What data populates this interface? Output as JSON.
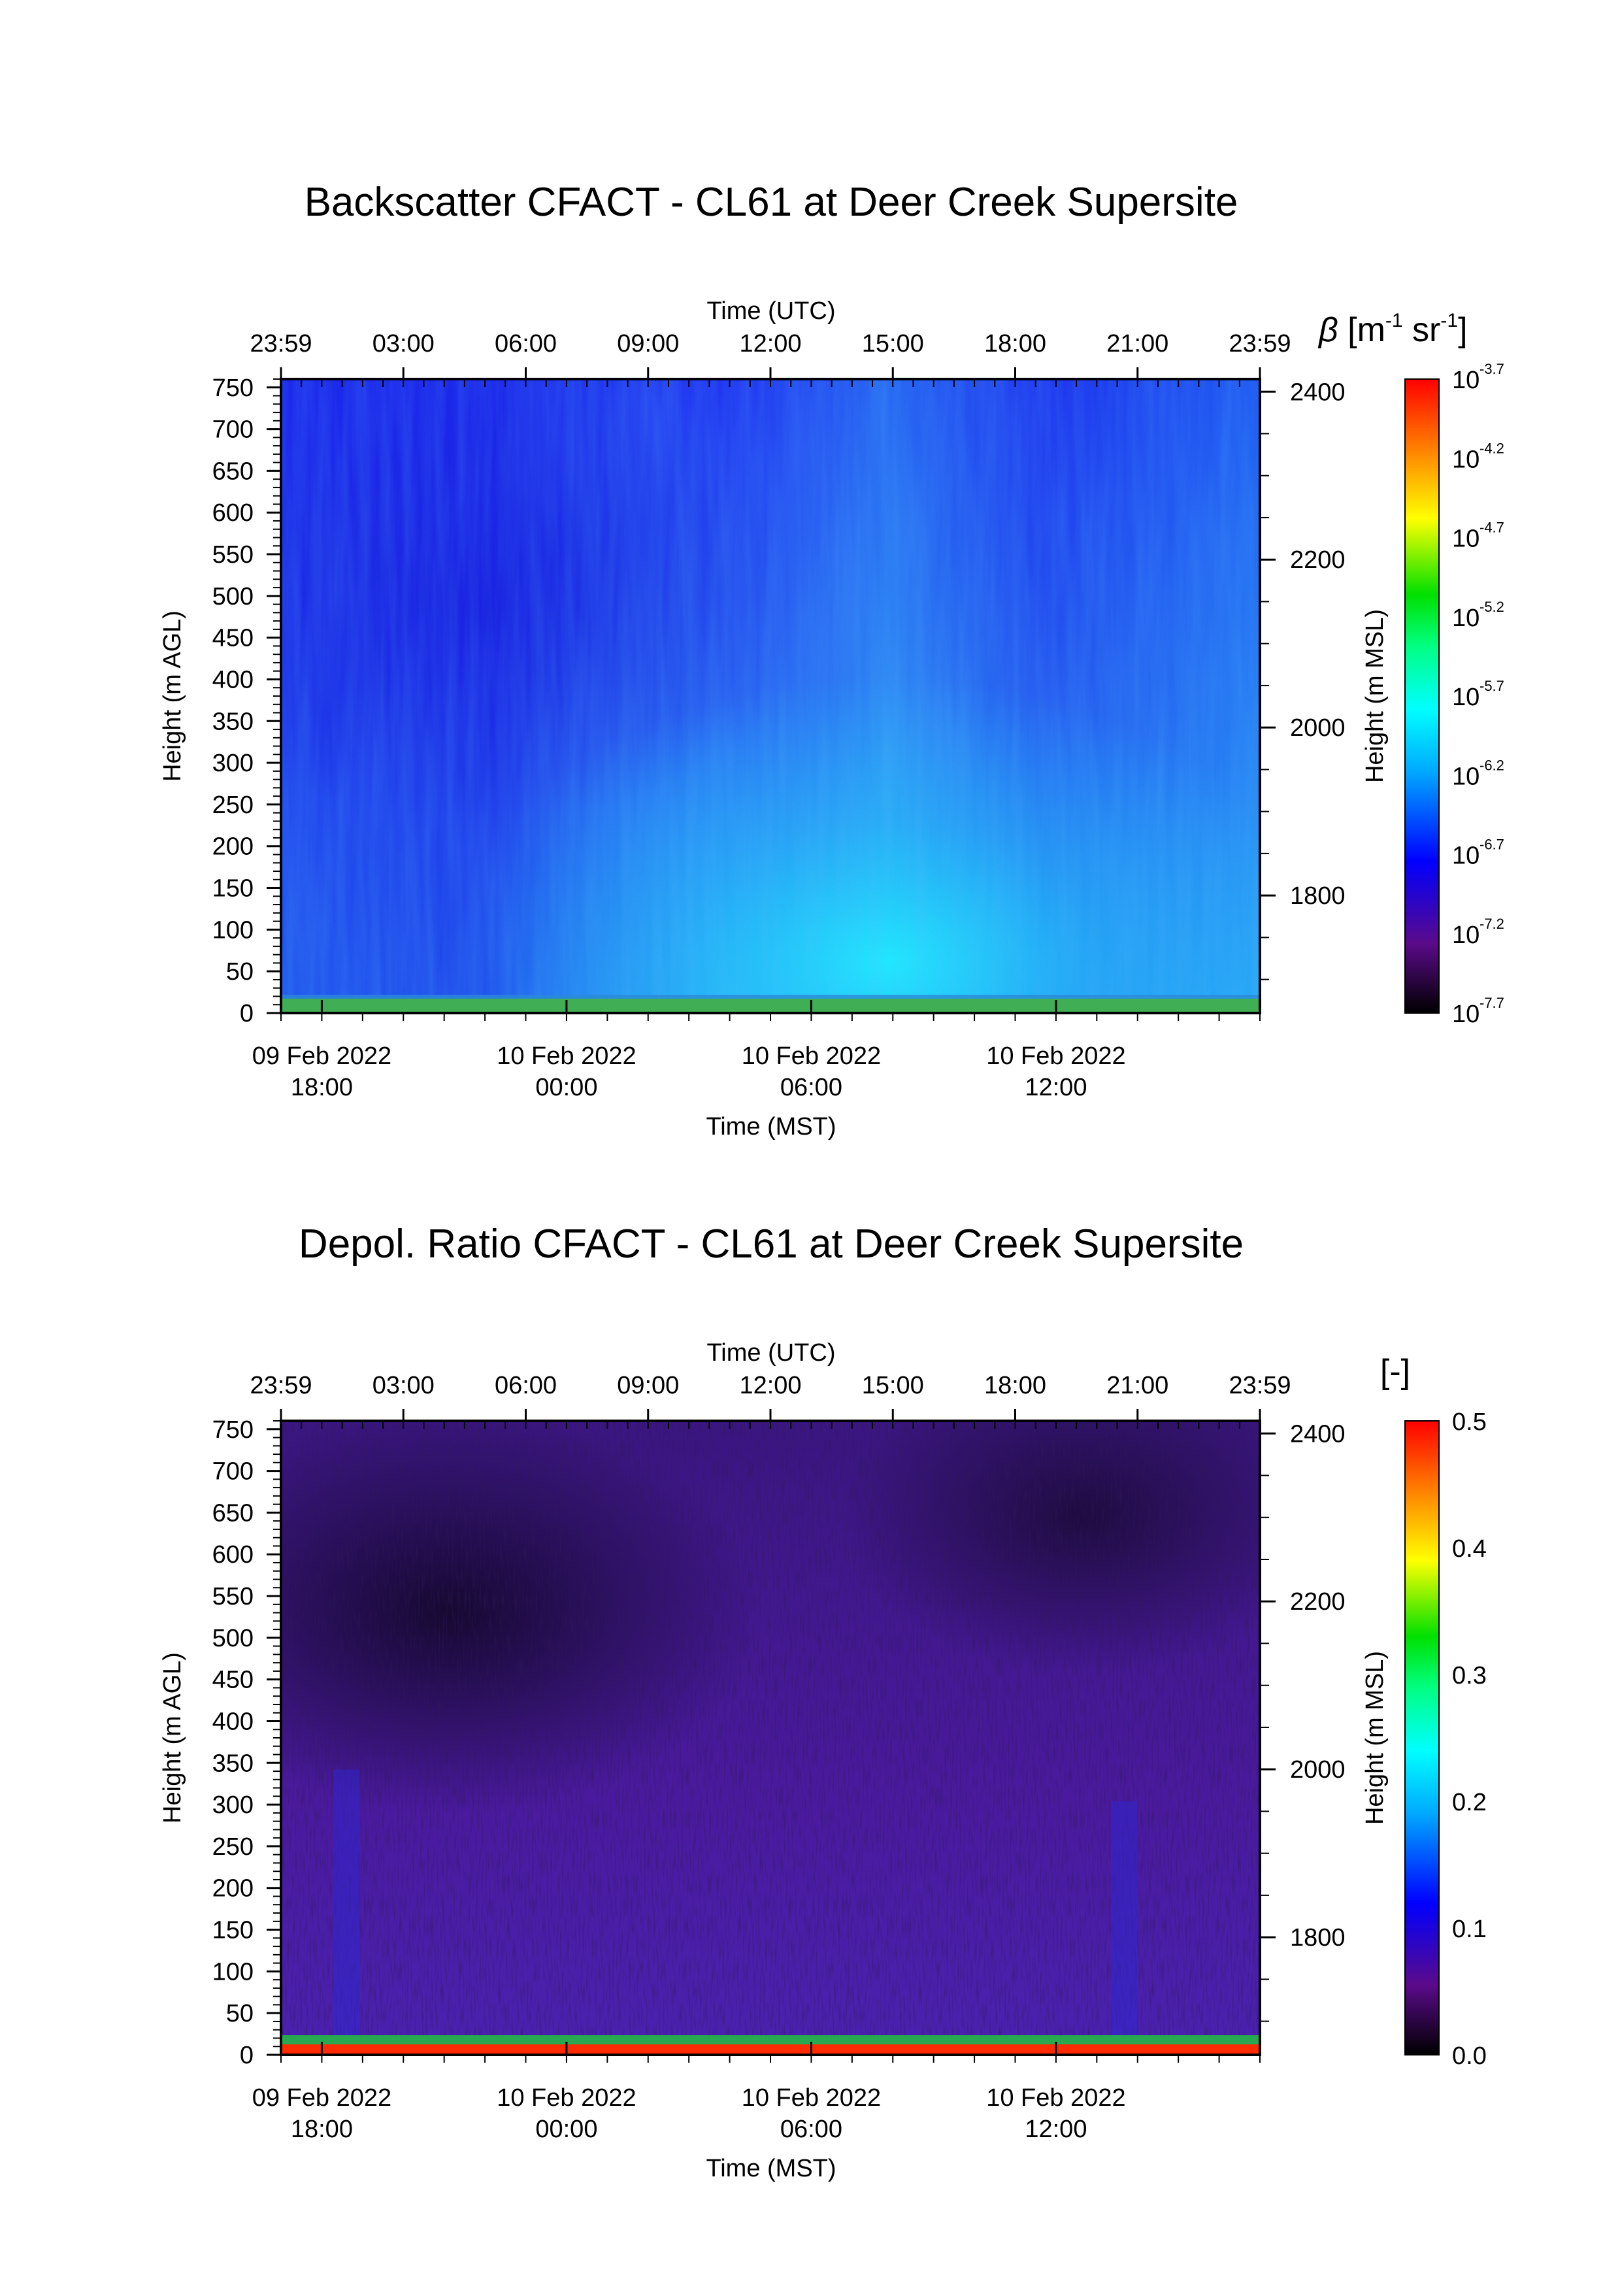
{
  "chart_data": [
    {
      "type": "heatmap",
      "title": "Backscatter CFACT - CL61 at Deer Creek Supersite",
      "x_top": {
        "label": "Time (UTC)",
        "ticks": [
          "23:59",
          "03:00",
          "06:00",
          "09:00",
          "12:00",
          "15:00",
          "18:00",
          "21:00",
          "23:59"
        ]
      },
      "x_bottom": {
        "label": "Time (MST)",
        "ticks": [
          {
            "date": "09 Feb 2022",
            "time": "18:00"
          },
          {
            "date": "10 Feb 2022",
            "time": "00:00"
          },
          {
            "date": "10 Feb 2022",
            "time": "06:00"
          },
          {
            "date": "10 Feb 2022",
            "time": "12:00"
          }
        ]
      },
      "y_left": {
        "label": "Height (m AGL)",
        "ticks": [
          750,
          700,
          650,
          600,
          550,
          500,
          450,
          400,
          350,
          300,
          250,
          200,
          150,
          100,
          50,
          0
        ],
        "range": [
          0,
          760
        ]
      },
      "y_right": {
        "label": "Height (m MSL)",
        "ticks": [
          2400,
          2200,
          2000,
          1800
        ]
      },
      "colorbar": {
        "label": "β [m-1 sr-1]",
        "label_parts": {
          "symbol": "β",
          "open": "[m",
          "exp1": "-1",
          "mid": " sr",
          "exp2": "-1",
          "close": "]"
        },
        "ticks": [
          {
            "base": "10",
            "exp": "-3.7"
          },
          {
            "base": "10",
            "exp": "-4.2"
          },
          {
            "base": "10",
            "exp": "-4.7"
          },
          {
            "base": "10",
            "exp": "-5.2"
          },
          {
            "base": "10",
            "exp": "-5.7"
          },
          {
            "base": "10",
            "exp": "-6.2"
          },
          {
            "base": "10",
            "exp": "-6.7"
          },
          {
            "base": "10",
            "exp": "-7.2"
          },
          {
            "base": "10",
            "exp": "-7.7"
          }
        ],
        "scale": "log",
        "colormap": [
          "#000000",
          "#5a0a8a",
          "#0000ff",
          "#00a8ff",
          "#00ffff",
          "#00ff80",
          "#00e000",
          "#ffff00",
          "#ff8000",
          "#ff0000"
        ]
      },
      "dominant_colors": {
        "upper": "#1a3cf2",
        "middle": "#2a8cf0",
        "lower": "#22d8f5",
        "surface": "#4caf50"
      }
    },
    {
      "type": "heatmap",
      "title": "Depol. Ratio CFACT - CL61 at Deer Creek Supersite",
      "x_top": {
        "label": "Time (UTC)",
        "ticks": [
          "23:59",
          "03:00",
          "06:00",
          "09:00",
          "12:00",
          "15:00",
          "18:00",
          "21:00",
          "23:59"
        ]
      },
      "x_bottom": {
        "label": "Time (MST)",
        "ticks": [
          {
            "date": "09 Feb 2022",
            "time": "18:00"
          },
          {
            "date": "10 Feb 2022",
            "time": "00:00"
          },
          {
            "date": "10 Feb 2022",
            "time": "06:00"
          },
          {
            "date": "10 Feb 2022",
            "time": "12:00"
          }
        ]
      },
      "y_left": {
        "label": "Height (m AGL)",
        "ticks": [
          750,
          700,
          650,
          600,
          550,
          500,
          450,
          400,
          350,
          300,
          250,
          200,
          150,
          100,
          50,
          0
        ],
        "range": [
          0,
          760
        ]
      },
      "y_right": {
        "label": "Height (m MSL)",
        "ticks": [
          2400,
          2200,
          2000,
          1800
        ]
      },
      "colorbar": {
        "label": "[-]",
        "ticks": [
          "0.5",
          "0.4",
          "0.3",
          "0.2",
          "0.1",
          "0.0"
        ],
        "range": [
          0.0,
          0.5
        ],
        "colormap": [
          "#000000",
          "#5a0a8a",
          "#0000ff",
          "#00a8ff",
          "#00ffff",
          "#00ff80",
          "#00e000",
          "#ffff00",
          "#ff8000",
          "#ff0000"
        ]
      },
      "dominant_colors": {
        "background": "#4a1a9a",
        "dark_patches": "#1a0a30",
        "surface": "#ff2000"
      }
    }
  ]
}
